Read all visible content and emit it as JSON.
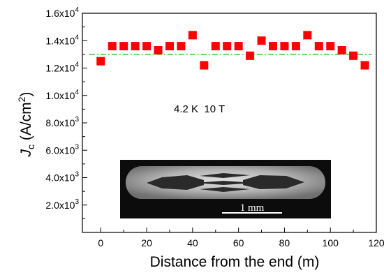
{
  "chart_data": {
    "type": "scatter",
    "x": [
      0,
      5,
      10,
      15,
      20,
      25,
      30,
      35,
      40,
      45,
      50,
      55,
      60,
      65,
      70,
      75,
      80,
      85,
      90,
      95,
      100,
      105,
      110,
      115
    ],
    "y": [
      12500,
      13600,
      13600,
      13600,
      13600,
      13300,
      13600,
      13600,
      14400,
      12200,
      13600,
      13600,
      13600,
      12900,
      14000,
      13600,
      13600,
      13600,
      14400,
      13600,
      13600,
      13300,
      12900,
      12200
    ],
    "reference_line": 13000,
    "xlabel": "Distance from the end (m)",
    "ylabel_main": "J",
    "ylabel_sub": "c",
    "ylabel_unit": " (A/cm",
    "ylabel_sup": "2",
    "ylabel_close": ")",
    "xlim": [
      -8,
      120
    ],
    "ylim": [
      0,
      16000
    ],
    "xticks": [
      "0",
      "20",
      "40",
      "60",
      "80",
      "100",
      "120"
    ],
    "yticks": [
      {
        "mant": "2.0x10",
        "exp": "3"
      },
      {
        "mant": "4.0x10",
        "exp": "3"
      },
      {
        "mant": "6.0x10",
        "exp": "3"
      },
      {
        "mant": "8.0x10",
        "exp": "3"
      },
      {
        "mant": "1.0x10",
        "exp": "4"
      },
      {
        "mant": "1.2x10",
        "exp": "4"
      },
      {
        "mant": "1.4x10",
        "exp": "4"
      },
      {
        "mant": "1.6x10",
        "exp": "4"
      }
    ],
    "annotation": "4.2 K  10 T",
    "inset_scale_label": "1 mm",
    "colors": {
      "marker": "#ff0000",
      "reference_line": "#33cc33",
      "axis": "#000000"
    }
  }
}
